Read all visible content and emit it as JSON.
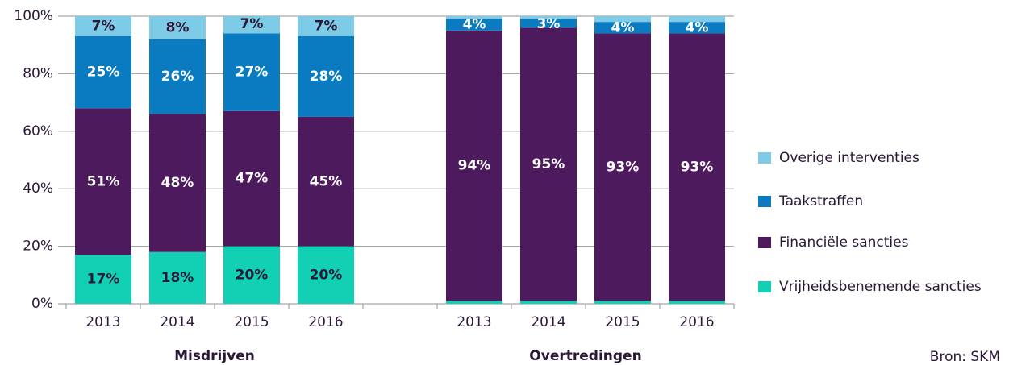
{
  "chart_data": {
    "type": "stacked_bar",
    "categories": [
      "2013",
      "2014",
      "2015",
      "2016",
      null,
      "2013",
      "2014",
      "2015",
      "2016"
    ],
    "group_labels": [
      "Misdrijven",
      "Overtredingen"
    ],
    "source": "Bron: SKM",
    "ylim": [
      0,
      100
    ],
    "yticks": [
      {
        "value": 0,
        "label": "0%"
      },
      {
        "value": 20,
        "label": "20%"
      },
      {
        "value": 40,
        "label": "40%"
      },
      {
        "value": 60,
        "label": "60%"
      },
      {
        "value": 80,
        "label": "80%"
      },
      {
        "value": 100,
        "label": "100%"
      }
    ],
    "grid": true,
    "legend": "right",
    "series": [
      {
        "name": "Vrijheidsbenemende sancties",
        "color": "#12d0b4",
        "label_color": "#2a1836",
        "values": [
          17,
          18,
          20,
          20,
          null,
          1,
          1,
          1,
          1
        ],
        "value_labels": [
          "17%",
          "18%",
          "20%",
          "20%",
          null,
          null,
          null,
          null,
          null
        ]
      },
      {
        "name": "Financiële sancties",
        "color": "#4e1a5e",
        "label_color": "#ffffff",
        "values": [
          51,
          48,
          47,
          45,
          null,
          94,
          95,
          93,
          93
        ],
        "value_labels": [
          "51%",
          "48%",
          "47%",
          "45%",
          null,
          "94%",
          "95%",
          "93%",
          "93%"
        ]
      },
      {
        "name": "Taakstraffen",
        "color": "#0a7bc1",
        "label_color": "#ffffff",
        "values": [
          25,
          26,
          27,
          28,
          null,
          4,
          3,
          4,
          4
        ],
        "value_labels": [
          "25%",
          "26%",
          "27%",
          "28%",
          null,
          "4%",
          "3%",
          "4%",
          "4%"
        ]
      },
      {
        "name": "Overige interventies",
        "color": "#7dcbe6",
        "label_color": "#2a1836",
        "values": [
          7,
          8,
          7,
          7,
          null,
          1,
          1,
          2,
          2
        ],
        "value_labels": [
          "7%",
          "8%",
          "7%",
          "7%",
          null,
          null,
          null,
          null,
          null
        ]
      }
    ]
  }
}
